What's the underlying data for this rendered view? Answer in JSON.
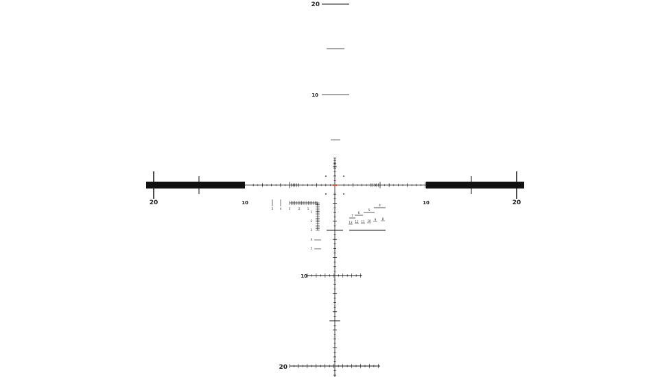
{
  "reticle": {
    "colors": {
      "ink": "#111111",
      "center_dot": "#e05030",
      "background": "#ffffff"
    },
    "vertical_labels": {
      "top_20": "20",
      "top_10": "10",
      "bottom_10": "10",
      "bottom_20": "20"
    },
    "horizontal_labels": {
      "left_20": "20",
      "left_10": "10",
      "right_10": "10",
      "right_20": "20"
    },
    "left_cluster": {
      "horizontal_labels": [
        "5",
        "4",
        "3",
        "2",
        "1"
      ],
      "vertical_labels": [
        "1",
        "2",
        "3",
        "4",
        "5"
      ]
    },
    "right_cluster": {
      "top_labels": [
        "7",
        "6",
        "5",
        "4"
      ],
      "bottom_labels": [
        "13",
        "12",
        "11",
        "10",
        "9",
        "8"
      ]
    }
  }
}
